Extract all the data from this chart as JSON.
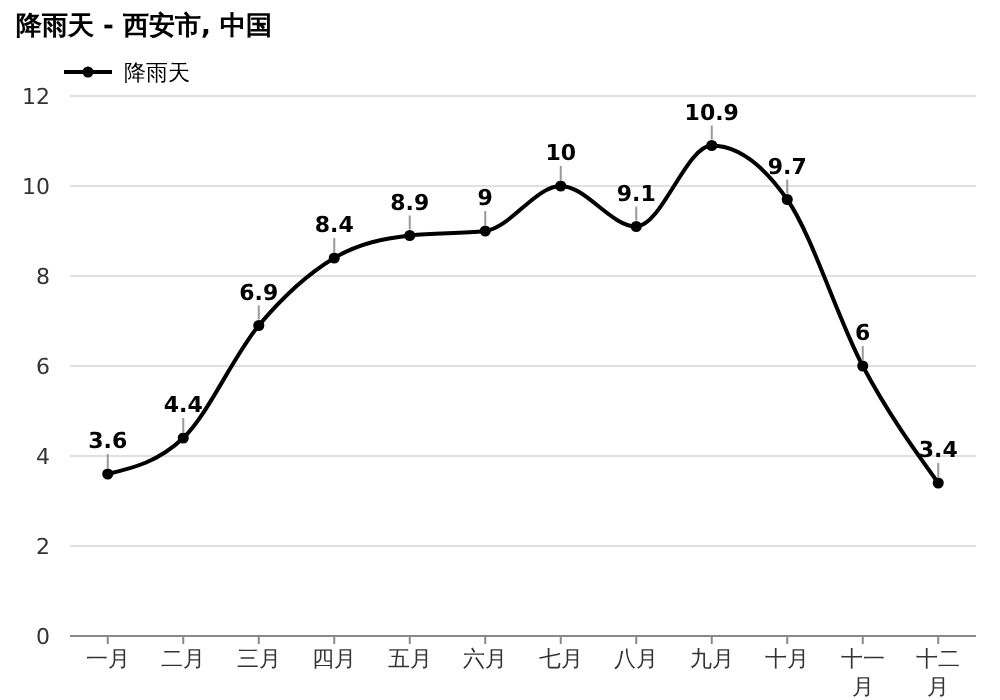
{
  "chart_data": {
    "type": "line",
    "title": "降雨天 - 西安市, 中国",
    "categories": [
      "一月",
      "二月",
      "三月",
      "四月",
      "五月",
      "六月",
      "七月",
      "八月",
      "九月",
      "十月",
      "十一月",
      "十二月"
    ],
    "series": [
      {
        "name": "降雨天",
        "color": "#000000",
        "values": [
          3.6,
          4.4,
          6.9,
          8.4,
          8.9,
          9,
          10,
          9.1,
          10.9,
          9.7,
          6,
          3.4
        ]
      }
    ],
    "ylim": [
      0,
      12
    ],
    "yticks": [
      0,
      2,
      4,
      6,
      8,
      10,
      12
    ],
    "grid": "y",
    "legend": "top left",
    "marker": "circle",
    "data_labels": true
  }
}
